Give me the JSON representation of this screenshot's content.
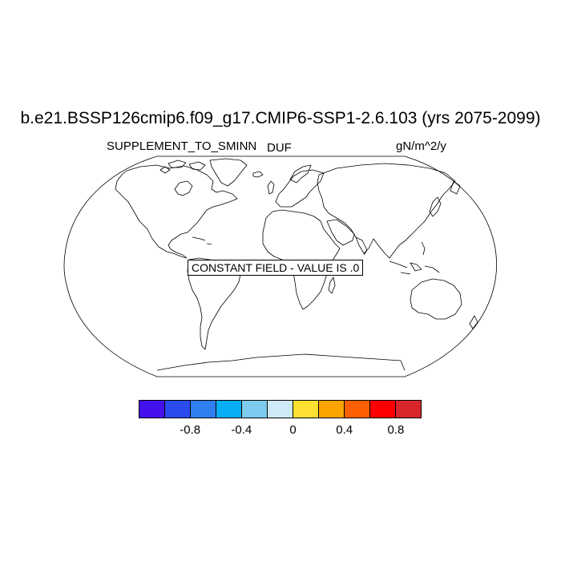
{
  "title": "b.e21.BSSP126cmip6.f09_g17.CMIP6-SSP1-2.6.103 (yrs 2075-2099)",
  "left_string": "SUPPLEMENT_TO_SMINN",
  "center_string": "DUF",
  "right_string": "gN/m^2/y",
  "constant_field_label": "CONSTANT FIELD - VALUE IS .0",
  "map": {
    "projection": "robinson",
    "coastline_color": "#000000"
  },
  "colorbar": {
    "colors": [
      "#4411ee",
      "#2b4bee",
      "#2f7ff0",
      "#08aef5",
      "#7ecbf0",
      "#cdeaf6",
      "#fde032",
      "#fea400",
      "#fe5f00",
      "#fe0000",
      "#d9262d"
    ],
    "tick_labels": [
      "-0.8",
      "-0.4",
      "0",
      "0.4",
      "0.8"
    ],
    "tick_values": [
      -0.8,
      -0.4,
      0,
      0.4,
      0.8
    ]
  }
}
